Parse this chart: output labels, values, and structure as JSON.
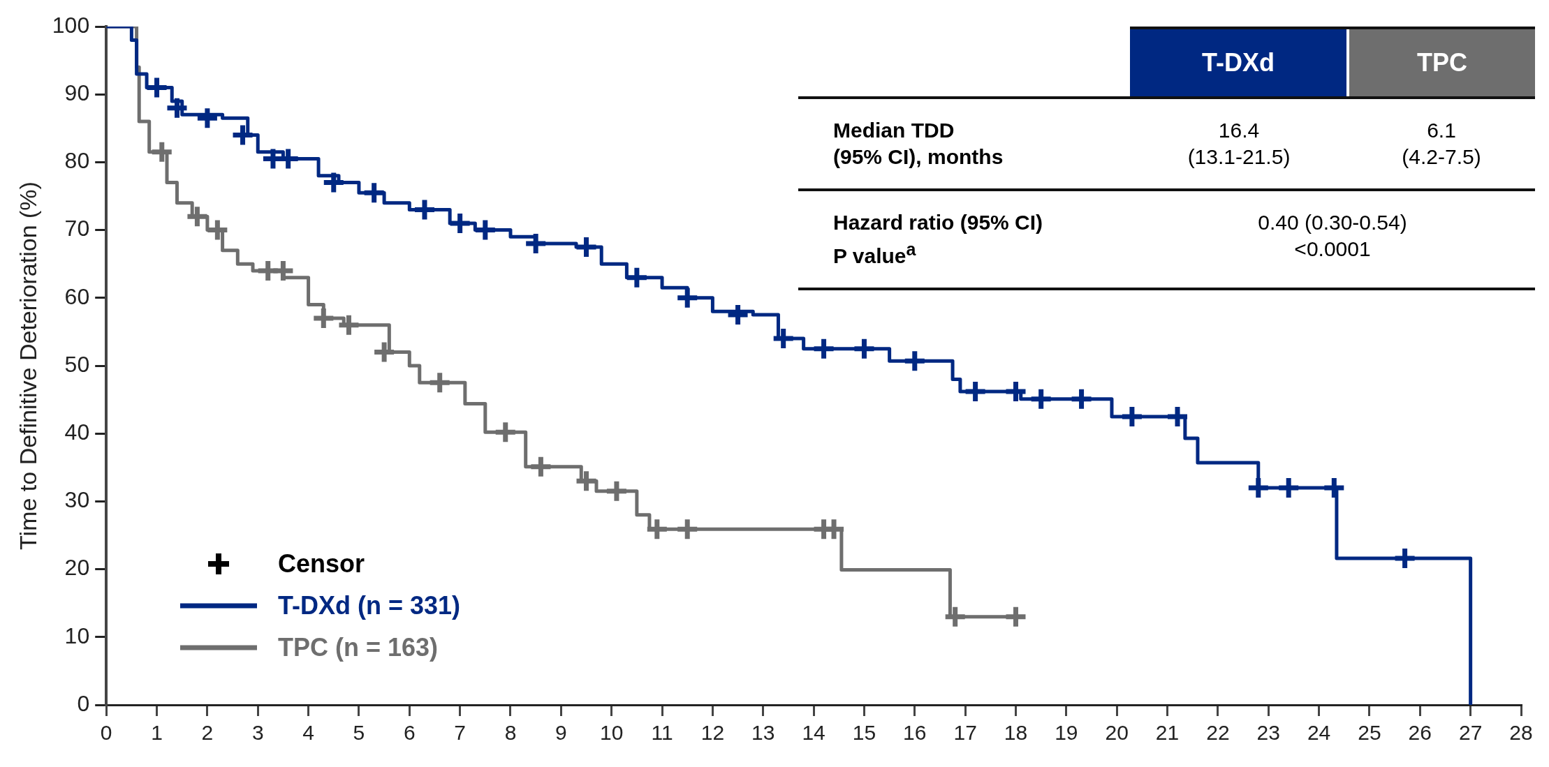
{
  "chart_data": {
    "type": "step",
    "ylabel": "Time to Definitive Deterioration (%)",
    "xlim": [
      0,
      28
    ],
    "xticks": [
      0,
      1,
      2,
      3,
      4,
      5,
      6,
      7,
      8,
      9,
      10,
      11,
      12,
      13,
      14,
      15,
      16,
      17,
      18,
      19,
      20,
      21,
      22,
      23,
      24,
      25,
      26,
      27,
      28
    ],
    "ylim": [
      0,
      100
    ],
    "yticks": [
      0,
      10,
      20,
      30,
      40,
      50,
      60,
      70,
      80,
      90,
      100
    ],
    "legend": "bottom left",
    "marker": "none",
    "series": [
      {
        "type": "scatter",
        "marker": "cross",
        "color": "#002882",
        "x": [
          1.0,
          1.4,
          2.0,
          2.7,
          3.3,
          3.6,
          4.5,
          5.3,
          6.3,
          7.0,
          7.5,
          8.5,
          9.5,
          10.5,
          11.5,
          12.5,
          13.4,
          14.2,
          15.0,
          16.0,
          17.2,
          18.0,
          18.5,
          19.3,
          20.3,
          21.2,
          22.8,
          23.4,
          24.3,
          25.7
        ],
        "values": [
          91,
          88,
          86.5,
          84,
          80.5,
          80.5,
          77,
          75.5,
          73,
          71,
          70,
          68,
          67.5,
          63,
          60,
          57.5,
          54,
          52.5,
          52.5,
          50.7,
          46.2,
          46.2,
          45.1,
          45.1,
          42.5,
          42.5,
          32,
          32,
          32,
          21.6
        ]
      },
      {
        "type": "scatter",
        "marker": "cross",
        "color": "#6e6e6e",
        "x": [
          1.1,
          1.8,
          2.2,
          3.2,
          3.5,
          4.3,
          4.8,
          5.5,
          6.6,
          7.9,
          8.6,
          9.5,
          10.1,
          10.9,
          11.5,
          14.2,
          14.4,
          16.8,
          18.0
        ],
        "values": [
          81.5,
          72,
          70,
          64,
          64,
          57,
          56,
          52,
          47.5,
          40.2,
          35.1,
          33,
          31.5,
          25.9,
          25.9,
          25.9,
          25.9,
          13,
          13
        ]
      },
      {
        "name": "T-DXd (n = 331)",
        "color": "#002882",
        "x": [
          0,
          0.5,
          0.6,
          0.8,
          1.3,
          1.5,
          2.3,
          2.8,
          3.0,
          3.5,
          4.2,
          4.6,
          5.0,
          5.5,
          6.0,
          6.8,
          7.3,
          8.0,
          8.5,
          9.3,
          9.8,
          10.3,
          11.0,
          11.5,
          12.0,
          12.8,
          13.3,
          13.8,
          15.5,
          16.75,
          16.9,
          18.1,
          19.9,
          21.35,
          21.6,
          22.8,
          24.35,
          27.0,
          27.0
        ],
        "values": [
          100,
          98,
          93,
          91,
          89,
          87,
          86.5,
          84,
          81.5,
          80.5,
          78,
          77,
          75.5,
          74,
          73,
          71,
          70,
          69,
          68,
          67.5,
          65,
          63,
          61.5,
          60,
          58,
          57.5,
          54,
          52.5,
          50.7,
          48,
          46.2,
          45.1,
          42.5,
          39.3,
          35.7,
          32,
          21.6,
          21.6,
          0
        ]
      },
      {
        "name": "TPC (n = 163)",
        "color": "#6e6e6e",
        "x": [
          0,
          0.6,
          0.65,
          0.85,
          1.2,
          1.4,
          1.7,
          2.0,
          2.3,
          2.6,
          2.9,
          3.5,
          4.0,
          4.3,
          4.7,
          5.6,
          6.0,
          6.2,
          7.1,
          7.5,
          8.3,
          9.4,
          9.7,
          10.5,
          10.75,
          14.55,
          16.7,
          18.0
        ],
        "values": [
          100,
          94,
          86,
          81.5,
          77,
          74,
          72,
          70,
          67,
          65,
          64,
          63,
          59,
          57,
          56,
          52,
          50,
          47.5,
          44.4,
          40.2,
          35.1,
          33,
          31.5,
          28,
          25.9,
          19.9,
          13,
          13
        ]
      }
    ],
    "annotations": [
      "T-DXd",
      "TPC",
      "Median TDD\n(95% CI), months",
      "16.4\n(13.1-21.5)",
      "6.1\n(4.2-7.5)",
      "Hazard ratio (95% CI)\nP value$^{a}$",
      "0.40 (0.30-0.54)\n<0.0001",
      "Censor"
    ]
  }
}
